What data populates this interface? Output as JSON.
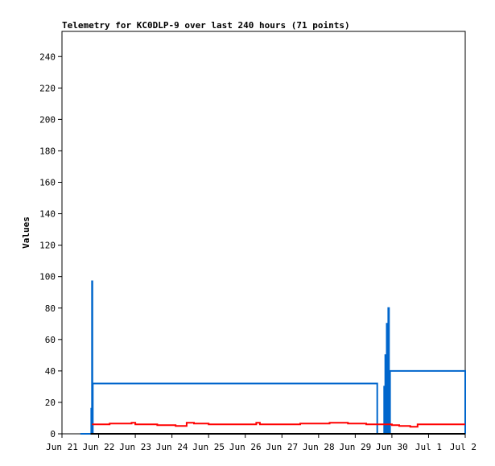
{
  "chart_data": {
    "type": "line",
    "title": "Telemetry for KC0DLP-9 over last 240 hours (71 points)",
    "xlabel": "",
    "ylabel": "Values",
    "x_tick_labels": [
      "Jun 21",
      "Jun 22",
      "Jun 23",
      "Jun 24",
      "Jun 25",
      "Jun 26",
      "Jun 27",
      "Jun 28",
      "Jun 29",
      "Jun 30",
      "Jul 1",
      "Jul 2"
    ],
    "xlim": [
      0,
      11
    ],
    "ylim": [
      0,
      256
    ],
    "y_ticks": [
      0,
      20,
      40,
      60,
      80,
      100,
      120,
      140,
      160,
      180,
      200,
      220,
      240
    ],
    "grid": false,
    "legend": "none",
    "series": [
      {
        "color": "#0066cc",
        "x": [
          0.5,
          0.78,
          0.8,
          0.81,
          0.82,
          0.83,
          0.84,
          8.6,
          8.78,
          8.79,
          8.81,
          8.82,
          8.84,
          8.86,
          8.88,
          8.9,
          8.92,
          8.95,
          11.0
        ],
        "y": [
          0,
          0,
          16,
          0,
          97,
          0,
          32,
          0,
          0,
          30,
          0,
          50,
          0,
          70,
          0,
          80,
          0,
          40,
          0
        ]
      },
      {
        "color": "#ff0000",
        "x": [
          0.82,
          1.0,
          1.3,
          1.6,
          1.9,
          2.0,
          2.3,
          2.6,
          2.9,
          3.1,
          3.4,
          3.6,
          4.0,
          4.5,
          5.0,
          5.2,
          5.3,
          5.4,
          5.7,
          6.0,
          6.5,
          6.9,
          7.3,
          7.8,
          8.3,
          8.7,
          9.0,
          9.2,
          9.5,
          9.7,
          9.9,
          10.2,
          10.7,
          11.0
        ],
        "y": [
          6,
          6,
          6.5,
          6.5,
          7,
          6,
          6,
          5.5,
          5.5,
          5,
          7,
          6.5,
          6,
          6,
          6,
          6,
          7,
          6,
          6,
          6,
          6.5,
          6.5,
          7,
          6.5,
          6,
          6,
          5.5,
          5,
          4.5,
          6,
          6,
          6,
          6,
          6
        ]
      },
      {
        "color": "#000000",
        "x": [
          0.78,
          11.0
        ],
        "y": [
          0,
          0
        ]
      }
    ]
  }
}
